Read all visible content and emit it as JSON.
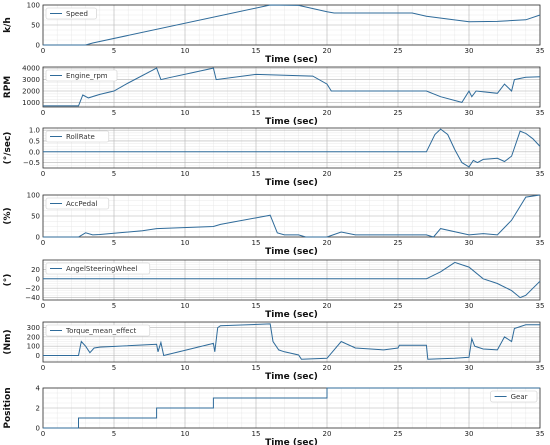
{
  "chart_data": [
    {
      "type": "line",
      "ylabel": "k/h",
      "xlabel": "Time (sec)",
      "legend": "top-left",
      "xlim": [
        0,
        35
      ],
      "xticks": [
        0,
        5,
        10,
        15,
        20,
        25,
        30,
        35
      ],
      "ylim": [
        0,
        100
      ],
      "yticks": [
        0,
        50,
        100
      ],
      "series": [
        {
          "name": "Speed",
          "x": [
            0,
            3,
            3.5,
            16,
            18,
            20,
            20.5,
            26,
            27,
            30,
            32,
            34,
            35
          ],
          "y": [
            0,
            0,
            5,
            100,
            99,
            83,
            80,
            80,
            72,
            58,
            59,
            63,
            75
          ]
        }
      ]
    },
    {
      "type": "line",
      "ylabel": "RPM",
      "xlabel": "Time (sec)",
      "legend": "top-left",
      "xlim": [
        0,
        35
      ],
      "xticks": [
        0,
        5,
        10,
        15,
        20,
        25,
        30,
        35
      ],
      "ylim": [
        600,
        4100
      ],
      "yticks": [
        1000,
        2000,
        3000,
        4000
      ],
      "series": [
        {
          "name": "Engine_rpm",
          "x": [
            0,
            2.5,
            2.8,
            3.2,
            4,
            5,
            6,
            8,
            8.3,
            9,
            10.5,
            12,
            12.2,
            15,
            19,
            20,
            20.3,
            27,
            28,
            29.5,
            30,
            30.2,
            30.5,
            32,
            32.5,
            33,
            33.2,
            34,
            35
          ],
          "y": [
            700,
            700,
            1650,
            1400,
            1700,
            2000,
            2700,
            4000,
            3000,
            3200,
            3600,
            4000,
            3000,
            3450,
            3300,
            2600,
            2000,
            2000,
            1500,
            1000,
            2000,
            1500,
            2000,
            1800,
            2600,
            2000,
            3000,
            3200,
            3250
          ]
        }
      ]
    },
    {
      "type": "line",
      "ylabel": "(°/sec)",
      "xlabel": "Time (sec)",
      "legend": "top-left",
      "xlim": [
        0,
        35
      ],
      "xticks": [
        0,
        5,
        10,
        15,
        20,
        25,
        30,
        35
      ],
      "ylim": [
        -0.75,
        1.1
      ],
      "yticks": [
        -0.5,
        0,
        0.5,
        1.0
      ],
      "yticklabels": [
        "−0.5",
        "0.0",
        "0.5",
        "1.0"
      ],
      "series": [
        {
          "name": "RollRate",
          "x": [
            0,
            27,
            27.6,
            28,
            28.5,
            29,
            29.5,
            30,
            30.3,
            30.6,
            31,
            32,
            32.5,
            33,
            33.6,
            34,
            34.5,
            35
          ],
          "y": [
            0,
            0,
            0.8,
            1.05,
            0.8,
            0.1,
            -0.5,
            -0.7,
            -0.4,
            -0.5,
            -0.35,
            -0.3,
            -0.45,
            -0.2,
            0.95,
            0.85,
            0.6,
            0.25
          ]
        }
      ]
    },
    {
      "type": "line",
      "ylabel": "(%)",
      "xlabel": "Time (sec)",
      "legend": "top-left",
      "xlim": [
        0,
        35
      ],
      "xticks": [
        0,
        5,
        10,
        15,
        20,
        25,
        30,
        35
      ],
      "ylim": [
        0,
        100
      ],
      "yticks": [
        0,
        50,
        100
      ],
      "series": [
        {
          "name": "AccPedal",
          "x": [
            0,
            2.5,
            3,
            3.5,
            4,
            7,
            8,
            12,
            12.5,
            16,
            16.5,
            17,
            18,
            18.5,
            20,
            21,
            22,
            27,
            27.5,
            28,
            30,
            31,
            32,
            33,
            34,
            35
          ],
          "y": [
            0,
            0,
            10,
            5,
            6,
            15,
            20,
            25,
            30,
            52,
            10,
            5,
            5,
            0,
            0,
            12,
            5,
            5,
            0,
            20,
            5,
            8,
            5,
            40,
            95,
            100
          ]
        }
      ]
    },
    {
      "type": "line",
      "ylabel": "(°)",
      "xlabel": "Time (sec)",
      "legend": "top-left",
      "xlim": [
        0,
        35
      ],
      "xticks": [
        0,
        5,
        10,
        15,
        20,
        25,
        30,
        35
      ],
      "ylim": [
        -45,
        40
      ],
      "yticks": [
        -40,
        -20,
        0,
        20
      ],
      "yticklabels": [
        "−40",
        "−20",
        "0",
        "20"
      ],
      "series": [
        {
          "name": "AngelSteeringWheel",
          "x": [
            0,
            27,
            28,
            29,
            30,
            31,
            32,
            33,
            33.6,
            34,
            35
          ],
          "y": [
            0,
            0,
            15,
            35,
            25,
            0,
            -10,
            -25,
            -40,
            -35,
            -5
          ]
        }
      ]
    },
    {
      "type": "line",
      "ylabel": "(Nm)",
      "xlabel": "Time (sec)",
      "legend": "top-left",
      "xlim": [
        0,
        35
      ],
      "xticks": [
        0,
        5,
        10,
        15,
        20,
        25,
        30,
        35
      ],
      "ylim": [
        -70,
        360
      ],
      "yticks": [
        0,
        100,
        200,
        300
      ],
      "series": [
        {
          "name": "Torque_mean_effect",
          "x": [
            0,
            2.5,
            2.7,
            3,
            3.3,
            3.6,
            4,
            8,
            8.1,
            8.3,
            8.5,
            12,
            12.1,
            12.3,
            12.5,
            16,
            16.2,
            16.6,
            17,
            18,
            18.2,
            20,
            21,
            22,
            24,
            25,
            25.1,
            27,
            27.1,
            28,
            29,
            30,
            30.2,
            30.4,
            31,
            32,
            32.5,
            33,
            33.2,
            34,
            35
          ],
          "y": [
            0,
            0,
            150,
            100,
            30,
            80,
            90,
            120,
            40,
            140,
            0,
            130,
            40,
            300,
            320,
            340,
            150,
            60,
            40,
            5,
            -40,
            -30,
            150,
            80,
            60,
            80,
            110,
            110,
            -40,
            -35,
            -30,
            -20,
            180,
            100,
            70,
            60,
            200,
            150,
            290,
            330,
            330
          ]
        }
      ]
    },
    {
      "type": "line",
      "ylabel": "Position",
      "xlabel": "Time (sec)",
      "legend": "top-right",
      "xlim": [
        0,
        35
      ],
      "xticks": [
        0,
        5,
        10,
        15,
        20,
        25,
        30,
        35
      ],
      "ylim": [
        0,
        4
      ],
      "yticks": [
        0,
        2,
        4
      ],
      "series": [
        {
          "name": "Gear",
          "x": [
            0,
            2.5,
            2.5,
            8,
            8,
            12,
            12,
            20,
            20,
            35
          ],
          "y": [
            0,
            0,
            1,
            1,
            2,
            2,
            3,
            3,
            4,
            4
          ]
        }
      ]
    }
  ],
  "style": {
    "line_color": "#2f6b9a",
    "grid_major": "#b9b9b9",
    "grid_minor": "#e3e3e3",
    "frame": "#333333"
  }
}
